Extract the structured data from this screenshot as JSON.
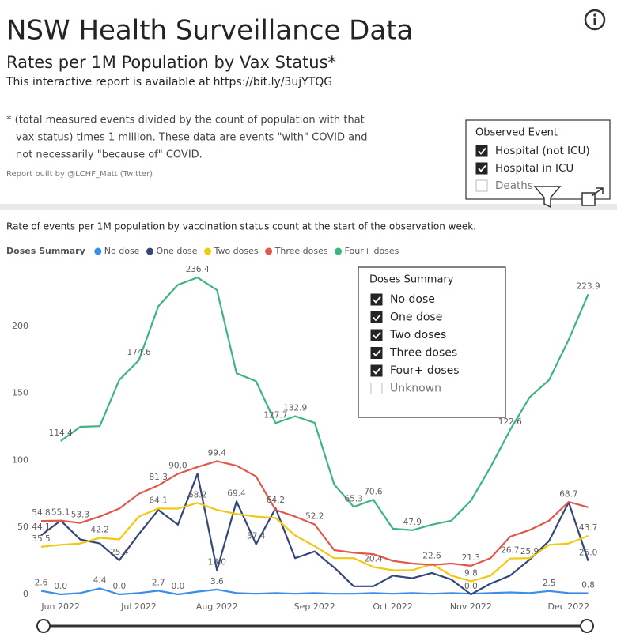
{
  "header": {
    "title": "NSW Health Surveillance Data",
    "subtitle": "Rates per 1M Population by Vax Status*",
    "link_text": "This interactive report is available at https://bit.ly/3ujYTQG",
    "note": [
      "* (total measured events divided by the count of population with that",
      "vax status) times 1 million.  These data are events \"with\" COVID and",
      "not necessarily \"because of\" COVID."
    ],
    "credit": "Report built by @LCHF_Matt (Twitter)"
  },
  "observed_event_slicer": {
    "title": "Observed Event",
    "items": [
      {
        "label": "Hospital (not ICU)",
        "checked": true
      },
      {
        "label": "Hospital in ICU",
        "checked": true
      },
      {
        "label": "Deaths",
        "checked": false
      }
    ]
  },
  "doses_slicer": {
    "title": "Doses Summary",
    "items": [
      {
        "label": "No dose",
        "checked": true
      },
      {
        "label": "One dose",
        "checked": true
      },
      {
        "label": "Two doses",
        "checked": true
      },
      {
        "label": "Three doses",
        "checked": true
      },
      {
        "label": "Four+ doses",
        "checked": true
      },
      {
        "label": "Unknown",
        "checked": false
      }
    ]
  },
  "chart_data": {
    "type": "line",
    "title": "Rate of events per 1M population by vaccination status count at the start of the observation week.",
    "legend_title": "Doses Summary",
    "categories": [
      null,
      "Jun 2022",
      null,
      null,
      null,
      "Jul 2022",
      null,
      null,
      null,
      "Aug 2022",
      null,
      null,
      null,
      null,
      "Sep 2022",
      null,
      null,
      null,
      "Oct 2022",
      null,
      null,
      null,
      "Nov 2022",
      null,
      null,
      null,
      null,
      "Dec 2022",
      null
    ],
    "series": [
      {
        "name": "No dose",
        "color": "#3a8ee6",
        "values": [
          2.6,
          0.0,
          1,
          4.4,
          0.0,
          1,
          2.7,
          0.0,
          2,
          3.6,
          1,
          0.5,
          1,
          0.5,
          1,
          0.5,
          0.5,
          1,
          0.5,
          1,
          0.5,
          1,
          0.5,
          1,
          1.5,
          1,
          2.5,
          1,
          0.8
        ],
        "value_labels": [
          "2.6",
          "0.0",
          null,
          "4.4",
          "0.0",
          null,
          "2.7",
          "0.0",
          null,
          "3.6",
          null,
          null,
          null,
          null,
          null,
          null,
          null,
          null,
          null,
          null,
          null,
          null,
          null,
          null,
          null,
          null,
          "2.5",
          null,
          "0.8"
        ]
      },
      {
        "name": "One dose",
        "color": "#34467a",
        "values": [
          44.1,
          55.1,
          41,
          38,
          25.4,
          45,
          63,
          52,
          90,
          18.0,
          69.4,
          37.4,
          64.2,
          27,
          32,
          20,
          6,
          6,
          14,
          12,
          16,
          11,
          0.0,
          8,
          14,
          25.9,
          40,
          68.7,
          25.0
        ],
        "value_labels": [
          "44.1",
          "55.1",
          null,
          null,
          "25.4",
          null,
          null,
          null,
          null,
          "18.0",
          "69.4",
          "37.4",
          "64.2",
          null,
          null,
          null,
          null,
          null,
          null,
          null,
          null,
          null,
          "0.0",
          null,
          null,
          "25.9",
          null,
          "68.7",
          "25.0"
        ]
      },
      {
        "name": "Two doses",
        "color": "#f2c80f",
        "values": [
          35.5,
          37,
          38,
          42.2,
          41,
          58,
          64.1,
          64,
          68.2,
          63,
          60,
          58,
          57,
          44,
          36,
          27,
          27,
          20.4,
          18,
          18,
          22.6,
          14,
          9.8,
          14,
          26.7,
          27,
          37,
          38,
          43.7
        ],
        "value_labels": [
          "35.5",
          null,
          null,
          "42.2",
          null,
          null,
          "64.1",
          null,
          "68.2",
          null,
          null,
          null,
          null,
          null,
          null,
          null,
          null,
          "20.4",
          null,
          null,
          "22.6",
          null,
          "9.8",
          null,
          "26.7",
          null,
          null,
          null,
          "43.7"
        ]
      },
      {
        "name": "Three doses",
        "color": "#e0584c",
        "values": [
          54.8,
          55,
          53.3,
          58,
          64,
          75,
          81.3,
          90.0,
          95,
          99.4,
          96,
          88,
          63,
          58,
          52.2,
          33,
          31,
          30,
          25,
          23,
          22,
          23,
          21.3,
          27,
          43,
          48,
          55,
          69,
          65
        ],
        "value_labels": [
          "54.8",
          null,
          "53.3",
          null,
          null,
          null,
          "81.3",
          "90.0",
          null,
          "99.4",
          null,
          null,
          null,
          null,
          "52.2",
          null,
          null,
          null,
          null,
          null,
          null,
          null,
          "21.3",
          null,
          null,
          null,
          null,
          null,
          null
        ]
      },
      {
        "name": "Four+ doses",
        "color": "#3db57e",
        "values": [
          null,
          114.4,
          125,
          125.5,
          160,
          174.6,
          215,
          231,
          236.4,
          227,
          165,
          159,
          127.7,
          132.9,
          128,
          82,
          65.3,
          70.6,
          49,
          47.9,
          52,
          55,
          70,
          95,
          122.6,
          147,
          160,
          190,
          223.9
        ],
        "value_labels": [
          null,
          "114.4",
          null,
          null,
          null,
          "174.6",
          null,
          null,
          "236.4",
          null,
          null,
          null,
          "127.7",
          "132.9",
          null,
          null,
          "65.3",
          "70.6",
          null,
          "47.9",
          null,
          null,
          null,
          null,
          "122.6",
          null,
          null,
          null,
          "223.9"
        ]
      }
    ],
    "ylim": [
      0,
      240
    ],
    "yticks": [
      0,
      50,
      100,
      150,
      200
    ],
    "grid": false
  }
}
